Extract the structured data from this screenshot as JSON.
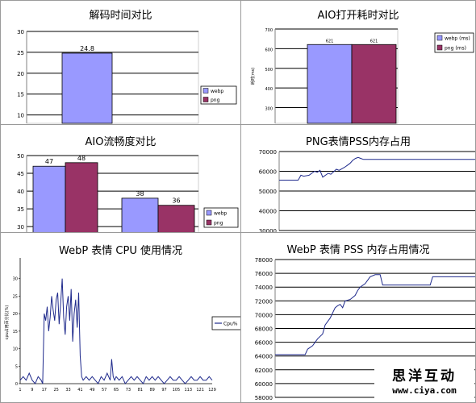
{
  "chart_data": [
    {
      "id": "decode",
      "type": "bar",
      "title": "解码时间对比",
      "ylim": [
        8,
        30
      ],
      "yticks": [
        10,
        15,
        20,
        25,
        30
      ],
      "ytick_labels": [
        "10",
        "15",
        "20",
        "25",
        "30"
      ],
      "categories": [
        ""
      ],
      "series": [
        {
          "name": "webp",
          "values": [
            24.8
          ],
          "labels": [
            "24.8"
          ],
          "color": "#9999ff"
        },
        {
          "name": "png",
          "values": [
            null
          ],
          "labels": [
            ""
          ],
          "color": "#993366"
        }
      ],
      "legend": "right"
    },
    {
      "id": "aio-open",
      "type": "bar",
      "title": "AIO打开耗时对比",
      "ylabel": "耗时(ms)",
      "ylim": [
        220,
        700
      ],
      "yticks": [
        300,
        400,
        500,
        600,
        700
      ],
      "ytick_labels": [
        "300",
        "400",
        "500",
        "600",
        "700"
      ],
      "categories": [
        ""
      ],
      "series": [
        {
          "name": "webp (ms)",
          "values": [
            621
          ],
          "labels": [
            "621"
          ],
          "color": "#9999ff"
        },
        {
          "name": "png (ms)",
          "values": [
            621
          ],
          "labels": [
            "621"
          ],
          "color": "#993366"
        }
      ],
      "legend": "right"
    },
    {
      "id": "aio-fluency",
      "type": "bar",
      "title": "AIO流畅度对比",
      "ylim": [
        28,
        50
      ],
      "yticks": [
        30,
        35,
        40,
        45,
        50
      ],
      "ytick_labels": [
        "30",
        "35",
        "40",
        "45",
        "50"
      ],
      "categories": [
        "",
        ""
      ],
      "series": [
        {
          "name": "webp",
          "values": [
            47,
            38
          ],
          "labels": [
            "47",
            "38"
          ],
          "color": "#9999ff"
        },
        {
          "name": "png",
          "values": [
            48,
            36
          ],
          "labels": [
            "48",
            "36"
          ],
          "color": "#993366"
        }
      ],
      "legend": "right"
    },
    {
      "id": "png-pss",
      "type": "line",
      "title": "PNG表情PSS内存占用",
      "ylim": [
        30000,
        70000
      ],
      "yticks": [
        30000,
        40000,
        50000,
        60000,
        70000
      ],
      "ytick_labels": [
        "30000",
        "40000",
        "50000",
        "60000",
        "70000"
      ],
      "x": [
        0,
        7,
        8,
        9,
        11,
        13,
        14,
        15,
        16,
        18,
        19,
        21,
        22,
        24,
        25,
        26,
        27,
        28,
        29,
        30,
        31,
        32,
        40,
        60,
        72
      ],
      "series": [
        {
          "name": "",
          "values": [
            55500,
            55500,
            58000,
            57500,
            58000,
            60000,
            59500,
            60500,
            57000,
            59000,
            58500,
            61000,
            60500,
            62000,
            63000,
            64000,
            65500,
            66500,
            67000,
            66500,
            66000,
            66000,
            66000,
            66000,
            66000
          ],
          "color": "#1f2a8c"
        }
      ]
    },
    {
      "id": "webp-cpu",
      "type": "line",
      "title": "WebP 表情 CPU 使用情况",
      "ylabel": "cpu占用百分比(%)",
      "ylim": [
        0,
        35
      ],
      "yticks": [
        0,
        5,
        10,
        15,
        20,
        25,
        30
      ],
      "ytick_labels": [
        "0",
        "5",
        "10",
        "15",
        "20",
        "25",
        "30"
      ],
      "xlim": [
        1,
        129
      ],
      "xticks": [
        1,
        9,
        17,
        25,
        33,
        41,
        49,
        57,
        65,
        73,
        81,
        89,
        97,
        105,
        113,
        121,
        129
      ],
      "xtick_labels": [
        "1",
        "9",
        "17",
        "25",
        "33",
        "41",
        "49",
        "57",
        "65",
        "73",
        "81",
        "89",
        "97",
        "105",
        "113",
        "121",
        "129"
      ],
      "x": [
        1,
        3,
        5,
        7,
        9,
        11,
        13,
        15,
        16,
        17,
        18,
        19,
        20,
        21,
        22,
        23,
        24,
        25,
        26,
        27,
        28,
        29,
        30,
        31,
        32,
        33,
        34,
        35,
        36,
        37,
        38,
        39,
        40,
        41,
        42,
        43,
        45,
        47,
        49,
        51,
        53,
        55,
        57,
        59,
        61,
        62,
        63,
        64,
        65,
        67,
        69,
        71,
        73,
        75,
        77,
        79,
        81,
        83,
        85,
        87,
        89,
        91,
        93,
        95,
        97,
        99,
        101,
        103,
        105,
        107,
        109,
        111,
        113,
        115,
        117,
        119,
        121,
        123,
        125,
        127,
        129
      ],
      "series": [
        {
          "name": "Cpu%",
          "values": [
            1,
            2,
            1,
            3,
            1,
            0,
            2,
            1,
            0,
            20,
            18,
            22,
            15,
            19,
            25,
            21,
            18,
            24,
            26,
            17,
            23,
            30,
            19,
            14,
            22,
            25,
            18,
            27,
            12,
            20,
            24,
            16,
            26,
            8,
            2,
            1,
            2,
            1,
            2,
            1,
            0,
            2,
            1,
            3,
            1,
            7,
            2,
            1,
            2,
            1,
            2,
            0,
            1,
            2,
            1,
            2,
            1,
            0,
            2,
            1,
            2,
            1,
            2,
            1,
            0,
            1,
            2,
            1,
            1,
            2,
            1,
            0,
            1,
            2,
            1,
            1,
            2,
            1,
            1,
            2,
            1
          ],
          "color": "#1f2a8c"
        }
      ],
      "legend": "right"
    },
    {
      "id": "webp-pss",
      "type": "line",
      "title": "WebP 表情 PSS 内存占用情况",
      "ylim": [
        58000,
        78000
      ],
      "yticks": [
        58000,
        60000,
        62000,
        64000,
        66000,
        68000,
        70000,
        72000,
        74000,
        76000,
        78000
      ],
      "ytick_labels": [
        "58000",
        "60000",
        "62000",
        "64000",
        "66000",
        "68000",
        "70000",
        "72000",
        "74000",
        "76000",
        "78000"
      ],
      "x": [
        0,
        12,
        13,
        15,
        17,
        19,
        20,
        22,
        24,
        25,
        26,
        27,
        28,
        30,
        32,
        33,
        34,
        36,
        38,
        40,
        42,
        43,
        44,
        52,
        62,
        63,
        70,
        80
      ],
      "series": [
        {
          "name": "",
          "values": [
            64200,
            64200,
            65000,
            65500,
            66500,
            67200,
            68500,
            69500,
            71000,
            71300,
            71500,
            71000,
            72000,
            72200,
            72800,
            73500,
            74000,
            74500,
            75500,
            75800,
            75800,
            74300,
            74300,
            74300,
            74300,
            75500,
            75500,
            75500
          ],
          "color": "#1f2a8c"
        }
      ]
    }
  ],
  "watermark": {
    "brand": "思洋互动",
    "url": "www.ciya.com"
  }
}
